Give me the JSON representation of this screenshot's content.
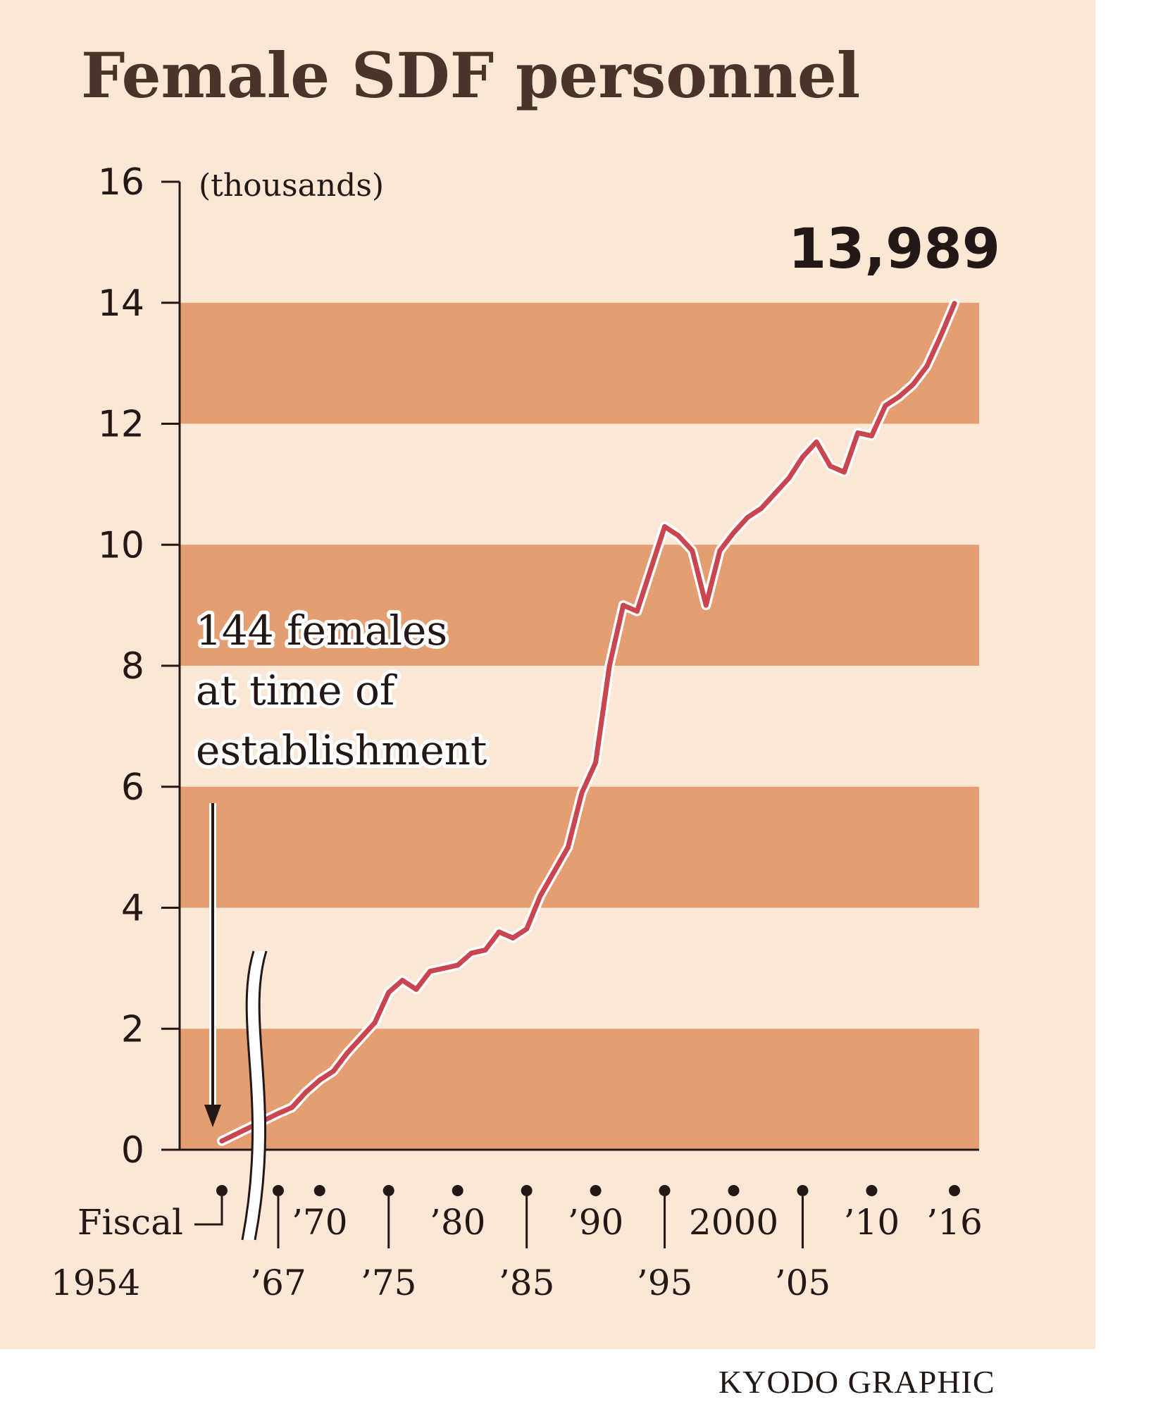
{
  "chart_data": {
    "type": "line",
    "title": "Female SDF personnel",
    "ylabel": "(thousands)",
    "ylim": [
      0,
      16
    ],
    "yticks": [
      0,
      2,
      4,
      6,
      8,
      10,
      12,
      14,
      16
    ],
    "x_axis": {
      "first_label": [
        "Fiscal",
        "1954"
      ],
      "axis_break_after": 1954,
      "upper_ticks": [
        {
          "year": 1970,
          "label": "’70"
        },
        {
          "year": 1980,
          "label": "’80"
        },
        {
          "year": 1990,
          "label": "’90"
        },
        {
          "year": 2000,
          "label": "2000"
        },
        {
          "year": 2010,
          "label": "’10"
        },
        {
          "year": 2016,
          "label": "’16"
        }
      ],
      "lower_ticks": [
        {
          "year": 1967,
          "label": "’67"
        },
        {
          "year": 1975,
          "label": "’75"
        },
        {
          "year": 1985,
          "label": "’85"
        },
        {
          "year": 1995,
          "label": "’95"
        },
        {
          "year": 2005,
          "label": "’05"
        }
      ]
    },
    "series": [
      {
        "x": [
          1954,
          1967,
          1968,
          1969,
          1970,
          1971,
          1972,
          1973,
          1974,
          1975,
          1976,
          1977,
          1978,
          1979,
          1980,
          1981,
          1982,
          1983,
          1984,
          1985,
          1986,
          1987,
          1988,
          1989,
          1990,
          1991,
          1992,
          1993,
          1994,
          1995,
          1996,
          1997,
          1998,
          1999,
          2000,
          2001,
          2002,
          2003,
          2004,
          2005,
          2006,
          2007,
          2008,
          2009,
          2010,
          2011,
          2012,
          2013,
          2014,
          2015,
          2016
        ],
        "y": [
          0.144,
          0.6,
          0.7,
          0.95,
          1.15,
          1.3,
          1.6,
          1.85,
          2.1,
          2.6,
          2.8,
          2.65,
          2.95,
          3.0,
          3.05,
          3.25,
          3.3,
          3.6,
          3.5,
          3.65,
          4.2,
          4.6,
          5.0,
          5.9,
          6.4,
          8.0,
          9.0,
          8.9,
          9.6,
          10.3,
          10.15,
          9.9,
          9.0,
          9.9,
          10.2,
          10.45,
          10.6,
          10.85,
          11.1,
          11.45,
          11.7,
          11.3,
          11.2,
          11.85,
          11.8,
          12.3,
          12.45,
          12.65,
          12.95,
          13.45,
          13.989
        ]
      }
    ],
    "annotations": {
      "start": [
        "144 females",
        "at time of",
        "establishment"
      ],
      "end": "13,989"
    },
    "colors": {
      "background": "#fae7d5",
      "band": "#e59d72",
      "line": "#c9454f",
      "title": "#4a3328",
      "text": "#231815"
    }
  },
  "credit": "KYODO GRAPHIC"
}
